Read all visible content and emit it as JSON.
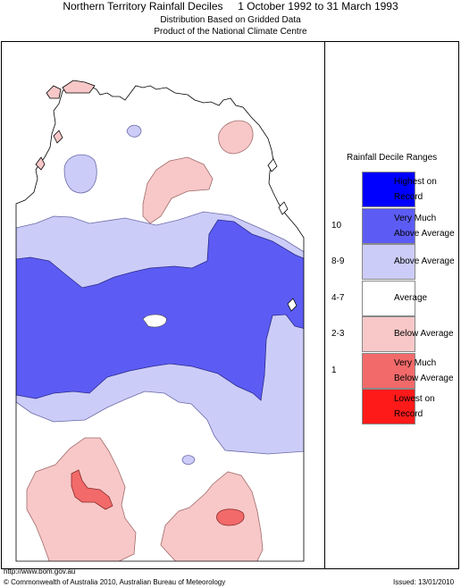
{
  "header": {
    "title": "Northern Territory Rainfall Deciles     1 October 1992 to 31 March 1993",
    "subtitle1": "Distribution Based on Gridded Data",
    "subtitle2": "Product of the National Climate Centre"
  },
  "legend": {
    "title": "Rainfall Decile Ranges",
    "items": [
      {
        "line1": "Highest on",
        "line2": "Record",
        "decile": "",
        "color": "#0000ff"
      },
      {
        "line1": "Very Much",
        "line2": "Above Average",
        "decile": "10",
        "color": "#5c5cf5"
      },
      {
        "line1": "Above Average",
        "line2": "",
        "decile": "8-9",
        "color": "#ccccf8"
      },
      {
        "line1": "Average",
        "line2": "",
        "decile": "4-7",
        "color": "#ffffff"
      },
      {
        "line1": "Below Average",
        "line2": "",
        "decile": "2-3",
        "color": "#f8c8c8"
      },
      {
        "line1": "Very Much",
        "line2": "Below Average",
        "decile": "1",
        "color": "#f26a6a"
      },
      {
        "line1": "Lowest on",
        "line2": "Record",
        "decile": "",
        "color": "#ff1a1a"
      }
    ]
  },
  "footer": {
    "url": "http://www.bom.gov.au",
    "copyright": "© Commonwealth of Australia 2010, Australian Bureau of Meteorology",
    "issued": "Issued: 13/01/2010"
  }
}
